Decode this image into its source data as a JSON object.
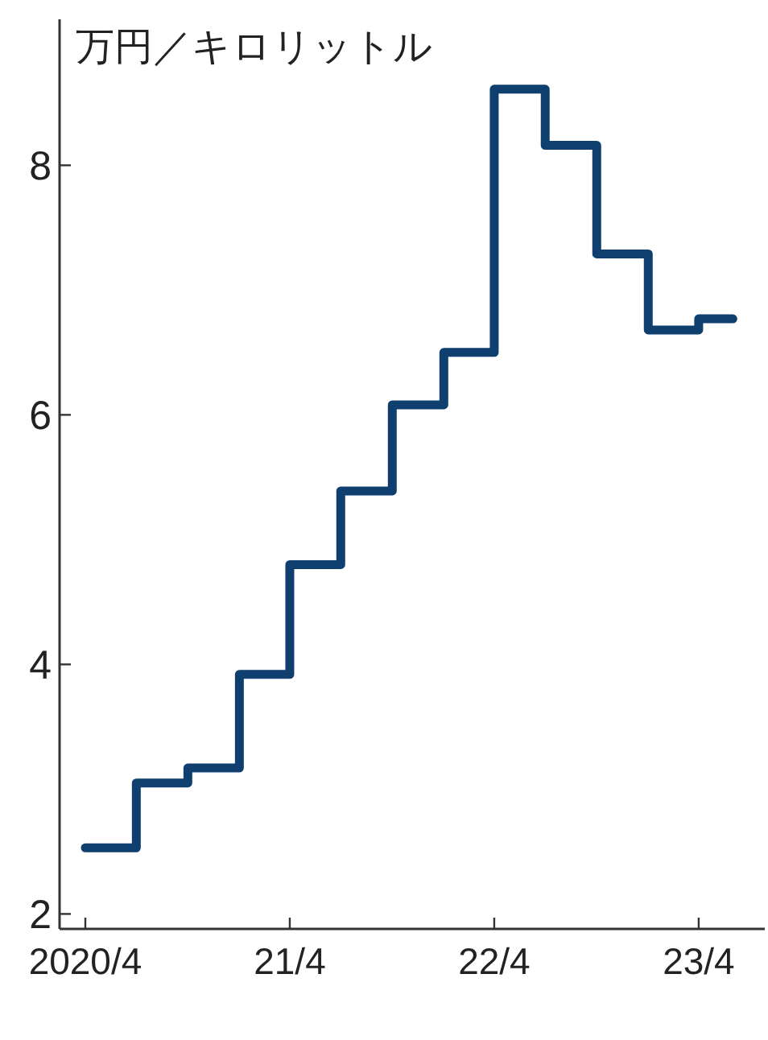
{
  "chart_data": {
    "type": "step",
    "ylabel": "万円／キロリットル",
    "color": "#0e3f6e",
    "x": [
      "2020-04",
      "2020-07",
      "2020-10",
      "2021-01",
      "2021-04",
      "2021-07",
      "2021-10",
      "2022-01",
      "2022-04",
      "2022-07",
      "2022-10",
      "2023-01",
      "2023-04",
      "2023-06"
    ],
    "values": [
      2.53,
      3.05,
      3.17,
      3.92,
      4.8,
      5.39,
      6.08,
      6.5,
      8.61,
      8.16,
      7.29,
      6.68,
      6.77,
      6.77
    ],
    "xlim": [
      "2020-02-15",
      "2023-07-28"
    ],
    "ylim": [
      1.88,
      9.17
    ],
    "xticks": [
      {
        "value": "2020-04",
        "label": "2020/4"
      },
      {
        "value": "2021-04",
        "label": "21/4"
      },
      {
        "value": "2022-04",
        "label": "22/4"
      },
      {
        "value": "2023-04",
        "label": "23/4"
      }
    ],
    "yticks": [
      2,
      4,
      6,
      8
    ]
  }
}
